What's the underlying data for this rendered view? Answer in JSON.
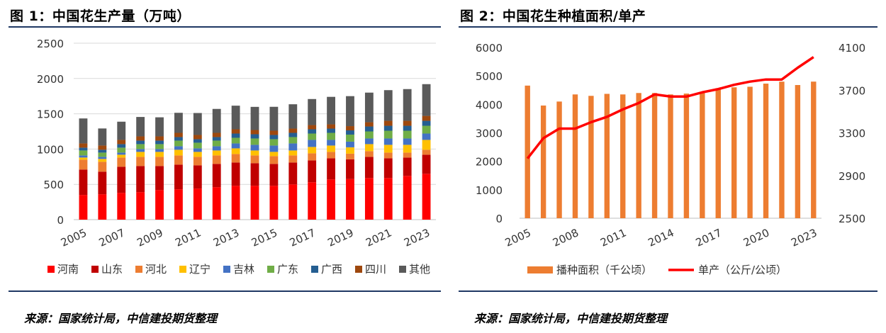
{
  "chart1": {
    "title": "图 1：中国花生产量（万吨）",
    "source": "来源：国家统计局，中信建投期货整理",
    "chart_data": {
      "type": "bar",
      "stacked": true,
      "categories": [
        "2005",
        "2006",
        "2007",
        "2008",
        "2009",
        "2010",
        "2011",
        "2012",
        "2013",
        "2014",
        "2015",
        "2016",
        "2017",
        "2018",
        "2019",
        "2020",
        "2021",
        "2022",
        "2023"
      ],
      "x_tick_labels": [
        "2005",
        "2007",
        "2009",
        "2011",
        "2013",
        "2015",
        "2017",
        "2019",
        "2021",
        "2023"
      ],
      "ylim": [
        0,
        2500
      ],
      "y_ticks": [
        "0",
        "500",
        "1000",
        "1500",
        "2000",
        "2500"
      ],
      "grid": true,
      "legend_position": "bottom",
      "series": [
        {
          "name": "河南",
          "color": "#ff0000",
          "values": [
            350,
            360,
            380,
            390,
            420,
            430,
            440,
            460,
            480,
            480,
            480,
            500,
            530,
            570,
            575,
            590,
            590,
            620,
            650
          ]
        },
        {
          "name": "山东",
          "color": "#c00000",
          "values": [
            360,
            320,
            370,
            370,
            340,
            350,
            330,
            330,
            330,
            320,
            310,
            310,
            310,
            300,
            280,
            300,
            280,
            260,
            270
          ]
        },
        {
          "name": "河北",
          "color": "#ed7d31",
          "values": [
            140,
            140,
            130,
            130,
            130,
            130,
            120,
            120,
            120,
            110,
            110,
            100,
            100,
            90,
            80,
            80,
            80,
            70,
            70
          ]
        },
        {
          "name": "辽宁",
          "color": "#ffc000",
          "values": [
            30,
            40,
            40,
            70,
            70,
            80,
            70,
            70,
            80,
            70,
            60,
            70,
            90,
            90,
            90,
            100,
            110,
            110,
            140
          ]
        },
        {
          "name": "吉林",
          "color": "#4472c4",
          "values": [
            30,
            30,
            30,
            40,
            40,
            50,
            50,
            60,
            70,
            80,
            90,
            100,
            100,
            80,
            80,
            80,
            90,
            90,
            90
          ]
        },
        {
          "name": "广东",
          "color": "#70ad47",
          "values": [
            70,
            60,
            70,
            70,
            70,
            80,
            80,
            80,
            80,
            90,
            90,
            90,
            90,
            100,
            100,
            100,
            110,
            110,
            110
          ]
        },
        {
          "name": "广西",
          "color": "#255e91",
          "values": [
            40,
            40,
            50,
            50,
            50,
            50,
            50,
            50,
            60,
            60,
            60,
            60,
            60,
            60,
            60,
            70,
            70,
            70,
            70
          ]
        },
        {
          "name": "四川",
          "color": "#9e480e",
          "values": [
            60,
            60,
            60,
            60,
            60,
            60,
            60,
            60,
            60,
            60,
            60,
            60,
            60,
            60,
            60,
            60,
            70,
            70,
            70
          ]
        },
        {
          "name": "其他",
          "color": "#5a5a5a",
          "values": [
            354,
            242,
            258,
            275,
            270,
            284,
            311,
            339,
            335,
            328,
            339,
            345,
            369,
            390,
            425,
            420,
            435,
            450,
            450
          ]
        }
      ]
    }
  },
  "chart2": {
    "title": "图 2：中国花生种植面积/单产",
    "source": "来源：国家统计局，中信建投期货整理",
    "chart_data": {
      "type": "bar+line",
      "categories": [
        "2005",
        "2006",
        "2007",
        "2008",
        "2009",
        "2010",
        "2011",
        "2012",
        "2013",
        "2014",
        "2015",
        "2016",
        "2017",
        "2018",
        "2019",
        "2020",
        "2021",
        "2022",
        "2023"
      ],
      "x_tick_labels": [
        "2005",
        "2008",
        "2011",
        "2014",
        "2017",
        "2020",
        "2023"
      ],
      "left_axis": {
        "ylim": [
          0,
          6000
        ],
        "ticks": [
          "0",
          "1000",
          "2000",
          "3000",
          "4000",
          "5000",
          "6000"
        ]
      },
      "right_axis": {
        "ylim": [
          2500,
          4100
        ],
        "ticks": [
          "2500",
          "2900",
          "3300",
          "3700",
          "4100"
        ]
      },
      "grid": false,
      "legend_position": "bottom",
      "series": [
        {
          "name": "播种面积（千公顷）",
          "type": "bar",
          "axis": "left",
          "color": "#ed7d31",
          "values": [
            4660,
            3960,
            4100,
            4350,
            4300,
            4370,
            4350,
            4400,
            4400,
            4350,
            4380,
            4400,
            4570,
            4600,
            4620,
            4730,
            4800,
            4680,
            4800
          ]
        },
        {
          "name": "单产（公斤/公顷）",
          "type": "line",
          "axis": "right",
          "color": "#ff0000",
          "values": [
            3060,
            3250,
            3340,
            3340,
            3400,
            3450,
            3520,
            3580,
            3660,
            3640,
            3640,
            3680,
            3710,
            3750,
            3780,
            3800,
            3800,
            3910,
            4010
          ]
        }
      ]
    }
  }
}
